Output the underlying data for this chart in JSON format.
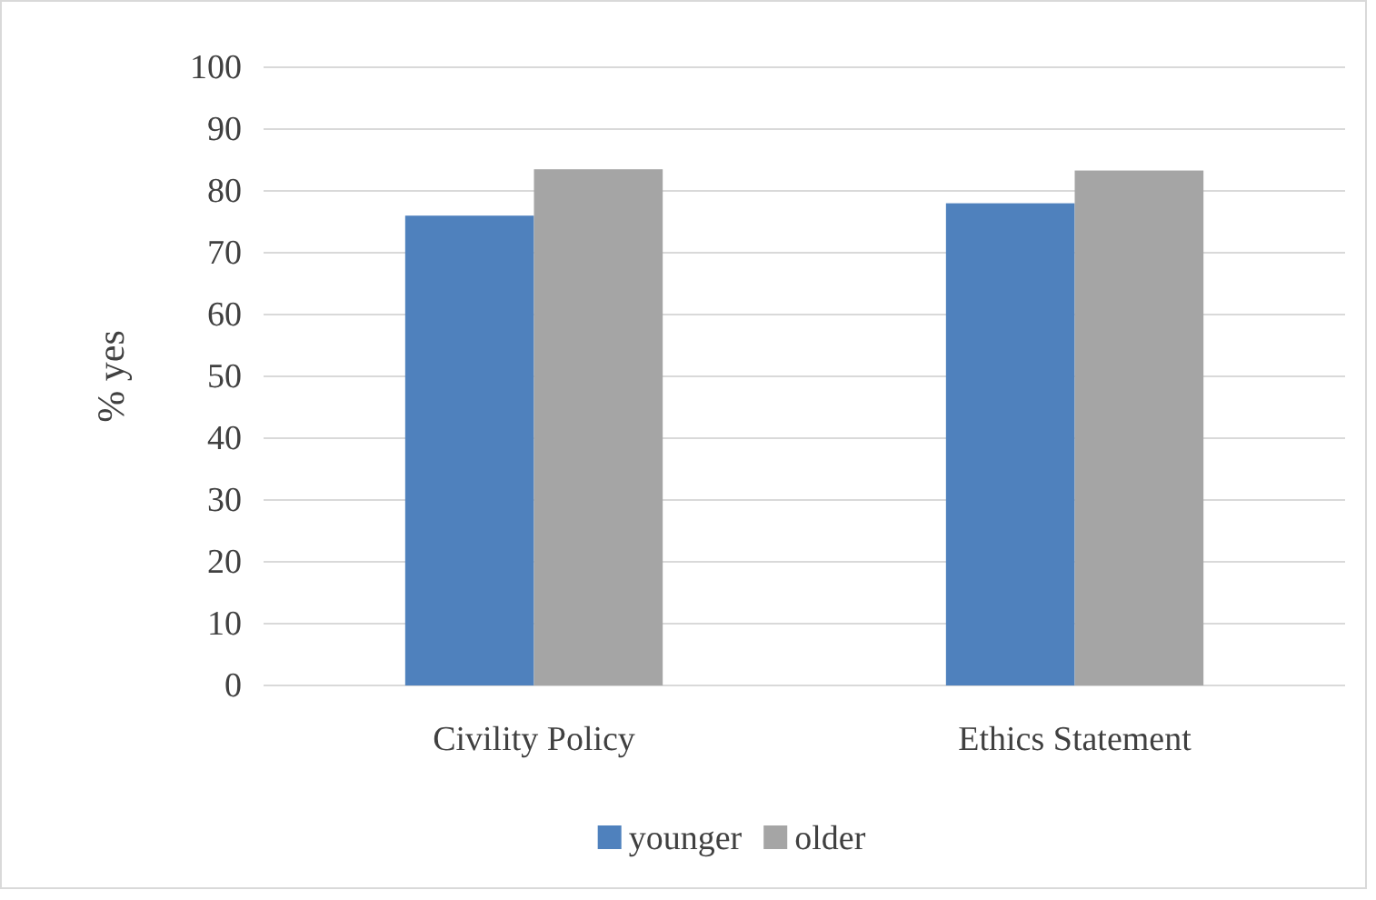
{
  "chart_data": {
    "type": "bar",
    "ylabel": "% yes",
    "categories": [
      "Civility Policy",
      "Ethics Statement"
    ],
    "series": [
      {
        "name": "younger",
        "color": "#4f81bd",
        "values": [
          76,
          78
        ]
      },
      {
        "name": "older",
        "color": "#a5a5a5",
        "values": [
          83.5,
          83.3
        ]
      }
    ],
    "ylim": [
      0,
      100
    ],
    "yticks": [
      0,
      10,
      20,
      30,
      40,
      50,
      60,
      70,
      80,
      90,
      100
    ],
    "grid": "y",
    "legend": "bottom"
  }
}
